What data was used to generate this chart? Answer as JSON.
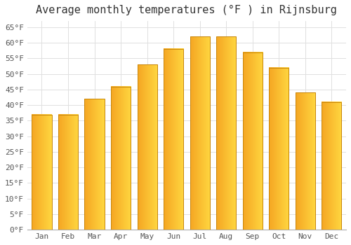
{
  "title": "Average monthly temperatures (°F ) in Rijnsburg",
  "months": [
    "Jan",
    "Feb",
    "Mar",
    "Apr",
    "May",
    "Jun",
    "Jul",
    "Aug",
    "Sep",
    "Oct",
    "Nov",
    "Dec"
  ],
  "values": [
    37,
    37,
    42,
    46,
    53,
    58,
    62,
    62,
    57,
    52,
    44,
    41
  ],
  "bar_color_left": "#F5A623",
  "bar_color_right": "#FFD740",
  "bar_edge_color": "#C8860A",
  "background_color": "#FFFFFF",
  "grid_color": "#E0E0E0",
  "title_fontsize": 11,
  "tick_fontsize": 8,
  "tick_color": "#555555",
  "title_color": "#333333",
  "ylim": [
    0,
    67
  ],
  "yticks": [
    0,
    5,
    10,
    15,
    20,
    25,
    30,
    35,
    40,
    45,
    50,
    55,
    60,
    65
  ],
  "ytick_labels": [
    "0°F",
    "5°F",
    "10°F",
    "15°F",
    "20°F",
    "25°F",
    "30°F",
    "35°F",
    "40°F",
    "45°F",
    "50°F",
    "55°F",
    "60°F",
    "65°F"
  ]
}
